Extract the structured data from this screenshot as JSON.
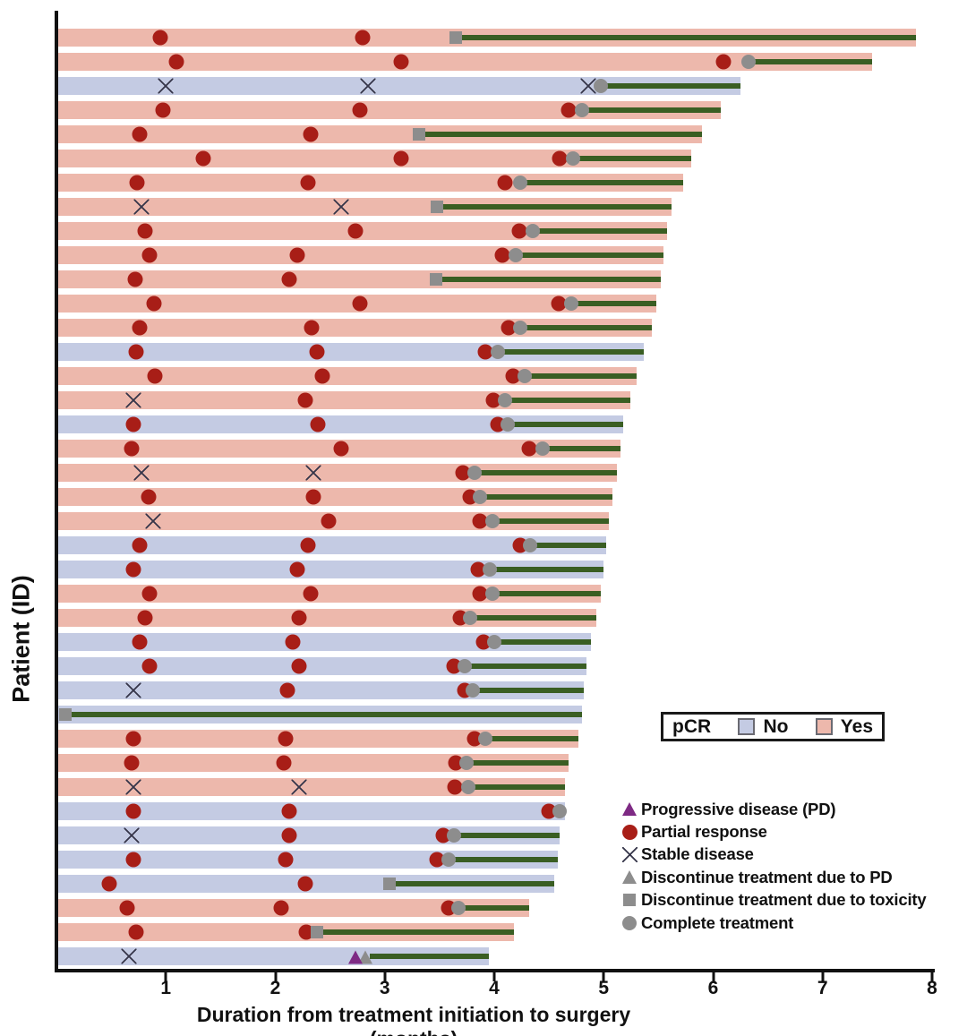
{
  "chart_data": {
    "type": "swimmer",
    "title": "",
    "xlabel": "Duration from treatment initiation to surgery (months)",
    "ylabel": "Patient (ID)",
    "xlim": [
      0,
      8
    ],
    "xticks": [
      1,
      2,
      3,
      4,
      5,
      6,
      7,
      8
    ],
    "grid": false,
    "colors": {
      "pcr_yes_bar": "#edb8ac",
      "pcr_no_bar": "#c4cbe3",
      "treatment_line": "#3a5e23",
      "partial_response": "#a81e17",
      "stable_disease_x": "#36364a",
      "progressive_disease": "#7e2a84",
      "discontinue_gray": "#8d8d8d",
      "axis": "#111111"
    },
    "rows": [
      {
        "pcr": "yes",
        "end": 7.85,
        "line_start": 3.65,
        "events": [
          {
            "t": "pr",
            "x": 0.95
          },
          {
            "t": "pr",
            "x": 2.8
          },
          {
            "t": "dtox",
            "x": 3.65
          }
        ]
      },
      {
        "pcr": "yes",
        "end": 7.45,
        "line_start": 6.32,
        "events": [
          {
            "t": "pr",
            "x": 1.1
          },
          {
            "t": "pr",
            "x": 3.15
          },
          {
            "t": "pr",
            "x": 6.09
          },
          {
            "t": "ct",
            "x": 6.32
          }
        ]
      },
      {
        "pcr": "no",
        "end": 6.25,
        "line_start": 4.97,
        "events": [
          {
            "t": "sd",
            "x": 1.0
          },
          {
            "t": "sd",
            "x": 2.85
          },
          {
            "t": "sd",
            "x": 4.86
          },
          {
            "t": "ct",
            "x": 4.97
          }
        ]
      },
      {
        "pcr": "yes",
        "end": 6.07,
        "line_start": 4.8,
        "events": [
          {
            "t": "pr",
            "x": 0.97
          },
          {
            "t": "pr",
            "x": 2.77
          },
          {
            "t": "pr",
            "x": 4.68
          },
          {
            "t": "ct",
            "x": 4.8
          }
        ]
      },
      {
        "pcr": "yes",
        "end": 5.9,
        "line_start": 3.31,
        "events": [
          {
            "t": "pr",
            "x": 0.76
          },
          {
            "t": "pr",
            "x": 2.32
          },
          {
            "t": "dtox",
            "x": 3.31
          }
        ]
      },
      {
        "pcr": "yes",
        "end": 5.8,
        "line_start": 4.72,
        "events": [
          {
            "t": "pr",
            "x": 1.34
          },
          {
            "t": "pr",
            "x": 3.15
          },
          {
            "t": "pr",
            "x": 4.6
          },
          {
            "t": "ct",
            "x": 4.72
          }
        ]
      },
      {
        "pcr": "yes",
        "end": 5.73,
        "line_start": 4.24,
        "events": [
          {
            "t": "pr",
            "x": 0.74
          },
          {
            "t": "pr",
            "x": 2.3
          },
          {
            "t": "pr",
            "x": 4.1
          },
          {
            "t": "ct",
            "x": 4.24
          }
        ]
      },
      {
        "pcr": "yes",
        "end": 5.62,
        "line_start": 3.48,
        "events": [
          {
            "t": "sd",
            "x": 0.78
          },
          {
            "t": "sd",
            "x": 2.6
          },
          {
            "t": "dtox",
            "x": 3.48
          }
        ]
      },
      {
        "pcr": "yes",
        "end": 5.58,
        "line_start": 4.35,
        "events": [
          {
            "t": "pr",
            "x": 0.81
          },
          {
            "t": "pr",
            "x": 2.73
          },
          {
            "t": "pr",
            "x": 4.23
          },
          {
            "t": "ct",
            "x": 4.35
          }
        ]
      },
      {
        "pcr": "yes",
        "end": 5.55,
        "line_start": 4.2,
        "events": [
          {
            "t": "pr",
            "x": 0.85
          },
          {
            "t": "pr",
            "x": 2.2
          },
          {
            "t": "pr",
            "x": 4.07
          },
          {
            "t": "ct",
            "x": 4.2
          }
        ]
      },
      {
        "pcr": "yes",
        "end": 5.52,
        "line_start": 3.47,
        "events": [
          {
            "t": "pr",
            "x": 0.72
          },
          {
            "t": "pr",
            "x": 2.13
          },
          {
            "t": "dtox",
            "x": 3.47
          }
        ]
      },
      {
        "pcr": "yes",
        "end": 5.48,
        "line_start": 4.7,
        "events": [
          {
            "t": "pr",
            "x": 0.89
          },
          {
            "t": "pr",
            "x": 2.77
          },
          {
            "t": "pr",
            "x": 4.59
          },
          {
            "t": "ct",
            "x": 4.7
          }
        ]
      },
      {
        "pcr": "yes",
        "end": 5.44,
        "line_start": 4.24,
        "events": [
          {
            "t": "pr",
            "x": 0.76
          },
          {
            "t": "pr",
            "x": 2.33
          },
          {
            "t": "pr",
            "x": 4.13
          },
          {
            "t": "ct",
            "x": 4.24
          }
        ]
      },
      {
        "pcr": "no",
        "end": 5.37,
        "line_start": 4.03,
        "events": [
          {
            "t": "pr",
            "x": 0.73
          },
          {
            "t": "pr",
            "x": 2.38
          },
          {
            "t": "pr",
            "x": 3.92
          },
          {
            "t": "ct",
            "x": 4.03
          }
        ]
      },
      {
        "pcr": "yes",
        "end": 5.3,
        "line_start": 4.28,
        "events": [
          {
            "t": "pr",
            "x": 0.9
          },
          {
            "t": "pr",
            "x": 2.43
          },
          {
            "t": "pr",
            "x": 4.17
          },
          {
            "t": "ct",
            "x": 4.28
          }
        ]
      },
      {
        "pcr": "yes",
        "end": 5.24,
        "line_start": 4.1,
        "events": [
          {
            "t": "sd",
            "x": 0.7
          },
          {
            "t": "pr",
            "x": 2.27
          },
          {
            "t": "pr",
            "x": 3.99
          },
          {
            "t": "ct",
            "x": 4.1
          }
        ]
      },
      {
        "pcr": "no",
        "end": 5.18,
        "line_start": 4.12,
        "events": [
          {
            "t": "pr",
            "x": 0.7
          },
          {
            "t": "pr",
            "x": 2.39
          },
          {
            "t": "pr",
            "x": 4.03
          },
          {
            "t": "ct",
            "x": 4.12
          }
        ]
      },
      {
        "pcr": "yes",
        "end": 5.15,
        "line_start": 4.44,
        "events": [
          {
            "t": "pr",
            "x": 0.69
          },
          {
            "t": "pr",
            "x": 2.6
          },
          {
            "t": "pr",
            "x": 4.32
          },
          {
            "t": "ct",
            "x": 4.44
          }
        ]
      },
      {
        "pcr": "yes",
        "end": 5.12,
        "line_start": 3.82,
        "events": [
          {
            "t": "sd",
            "x": 0.78
          },
          {
            "t": "sd",
            "x": 2.35
          },
          {
            "t": "pr",
            "x": 3.71
          },
          {
            "t": "ct",
            "x": 3.82
          }
        ]
      },
      {
        "pcr": "yes",
        "end": 5.08,
        "line_start": 3.87,
        "events": [
          {
            "t": "pr",
            "x": 0.84
          },
          {
            "t": "pr",
            "x": 2.35
          },
          {
            "t": "pr",
            "x": 3.78
          },
          {
            "t": "ct",
            "x": 3.87
          }
        ]
      },
      {
        "pcr": "yes",
        "end": 5.05,
        "line_start": 3.98,
        "events": [
          {
            "t": "sd",
            "x": 0.88
          },
          {
            "t": "pr",
            "x": 2.49
          },
          {
            "t": "pr",
            "x": 3.87
          },
          {
            "t": "ct",
            "x": 3.98
          }
        ]
      },
      {
        "pcr": "no",
        "end": 5.02,
        "line_start": 4.33,
        "events": [
          {
            "t": "pr",
            "x": 0.76
          },
          {
            "t": "pr",
            "x": 2.3
          },
          {
            "t": "pr",
            "x": 4.24
          },
          {
            "t": "ct",
            "x": 4.33
          }
        ]
      },
      {
        "pcr": "no",
        "end": 5.0,
        "line_start": 3.96,
        "events": [
          {
            "t": "pr",
            "x": 0.7
          },
          {
            "t": "pr",
            "x": 2.2
          },
          {
            "t": "pr",
            "x": 3.85
          },
          {
            "t": "ct",
            "x": 3.96
          }
        ]
      },
      {
        "pcr": "yes",
        "end": 4.97,
        "line_start": 3.98,
        "events": [
          {
            "t": "pr",
            "x": 0.85
          },
          {
            "t": "pr",
            "x": 2.32
          },
          {
            "t": "pr",
            "x": 3.87
          },
          {
            "t": "ct",
            "x": 3.98
          }
        ]
      },
      {
        "pcr": "yes",
        "end": 4.93,
        "line_start": 3.78,
        "events": [
          {
            "t": "pr",
            "x": 0.81
          },
          {
            "t": "pr",
            "x": 2.22
          },
          {
            "t": "pr",
            "x": 3.69
          },
          {
            "t": "ct",
            "x": 3.78
          }
        ]
      },
      {
        "pcr": "no",
        "end": 4.88,
        "line_start": 4.0,
        "events": [
          {
            "t": "pr",
            "x": 0.76
          },
          {
            "t": "pr",
            "x": 2.16
          },
          {
            "t": "pr",
            "x": 3.9
          },
          {
            "t": "ct",
            "x": 4.0
          }
        ]
      },
      {
        "pcr": "no",
        "end": 4.84,
        "line_start": 3.73,
        "events": [
          {
            "t": "pr",
            "x": 0.85
          },
          {
            "t": "pr",
            "x": 2.22
          },
          {
            "t": "pr",
            "x": 3.63
          },
          {
            "t": "ct",
            "x": 3.73
          }
        ]
      },
      {
        "pcr": "no",
        "end": 4.82,
        "line_start": 3.8,
        "events": [
          {
            "t": "sd",
            "x": 0.7
          },
          {
            "t": "pr",
            "x": 2.11
          },
          {
            "t": "pr",
            "x": 3.73
          },
          {
            "t": "ct",
            "x": 3.8
          }
        ]
      },
      {
        "pcr": "no",
        "end": 4.8,
        "line_start": 0.08,
        "events": [
          {
            "t": "dtox",
            "x": 0.08
          }
        ]
      },
      {
        "pcr": "yes",
        "end": 4.77,
        "line_start": 3.92,
        "events": [
          {
            "t": "pr",
            "x": 0.7
          },
          {
            "t": "pr",
            "x": 2.09
          },
          {
            "t": "pr",
            "x": 3.82
          },
          {
            "t": "ct",
            "x": 3.92
          }
        ]
      },
      {
        "pcr": "yes",
        "end": 4.68,
        "line_start": 3.75,
        "events": [
          {
            "t": "pr",
            "x": 0.69
          },
          {
            "t": "pr",
            "x": 2.08
          },
          {
            "t": "pr",
            "x": 3.65
          },
          {
            "t": "ct",
            "x": 3.75
          }
        ]
      },
      {
        "pcr": "yes",
        "end": 4.65,
        "line_start": 3.76,
        "events": [
          {
            "t": "sd",
            "x": 0.7
          },
          {
            "t": "sd",
            "x": 2.22
          },
          {
            "t": "pr",
            "x": 3.64
          },
          {
            "t": "ct",
            "x": 3.76
          }
        ]
      },
      {
        "pcr": "no",
        "end": 4.65,
        "line_start": 4.6,
        "events": [
          {
            "t": "pr",
            "x": 0.7
          },
          {
            "t": "pr",
            "x": 2.13
          },
          {
            "t": "pr",
            "x": 4.5
          },
          {
            "t": "ct",
            "x": 4.6
          }
        ]
      },
      {
        "pcr": "no",
        "end": 4.6,
        "line_start": 3.63,
        "events": [
          {
            "t": "sd",
            "x": 0.69
          },
          {
            "t": "pr",
            "x": 2.13
          },
          {
            "t": "pr",
            "x": 3.53
          },
          {
            "t": "ct",
            "x": 3.63
          }
        ]
      },
      {
        "pcr": "no",
        "end": 4.58,
        "line_start": 3.58,
        "events": [
          {
            "t": "pr",
            "x": 0.7
          },
          {
            "t": "pr",
            "x": 2.09
          },
          {
            "t": "pr",
            "x": 3.48
          },
          {
            "t": "ct",
            "x": 3.58
          }
        ]
      },
      {
        "pcr": "no",
        "end": 4.55,
        "line_start": 3.04,
        "events": [
          {
            "t": "pr",
            "x": 0.48
          },
          {
            "t": "pr",
            "x": 2.27
          },
          {
            "t": "dtox",
            "x": 3.04
          }
        ]
      },
      {
        "pcr": "yes",
        "end": 4.32,
        "line_start": 3.67,
        "events": [
          {
            "t": "pr",
            "x": 0.65
          },
          {
            "t": "pr",
            "x": 2.05
          },
          {
            "t": "pr",
            "x": 3.58
          },
          {
            "t": "ct",
            "x": 3.67
          }
        ]
      },
      {
        "pcr": "yes",
        "end": 4.18,
        "line_start": 2.38,
        "events": [
          {
            "t": "pr",
            "x": 0.73
          },
          {
            "t": "pr",
            "x": 2.28
          },
          {
            "t": "dtox",
            "x": 2.38
          }
        ]
      },
      {
        "pcr": "no",
        "end": 3.95,
        "line_start": 2.86,
        "events": [
          {
            "t": "sd",
            "x": 0.66
          },
          {
            "t": "dpd",
            "x": 2.82
          },
          {
            "t": "pd",
            "x": 2.73
          }
        ]
      }
    ]
  },
  "legend_pcr": {
    "title": "pCR",
    "items": [
      {
        "key": "no",
        "label": "No"
      },
      {
        "key": "yes",
        "label": "Yes"
      }
    ]
  },
  "legend_markers": [
    {
      "type": "pd",
      "label": "Progressive disease (PD)"
    },
    {
      "type": "pr",
      "label": "Partial response"
    },
    {
      "type": "sd",
      "label": "Stable disease"
    },
    {
      "type": "dpd",
      "label": "Discontinue treatment due to PD"
    },
    {
      "type": "dtox",
      "label": "Discontinue treatment due to toxicity"
    },
    {
      "type": "ct",
      "label": "Complete treatment"
    }
  ]
}
